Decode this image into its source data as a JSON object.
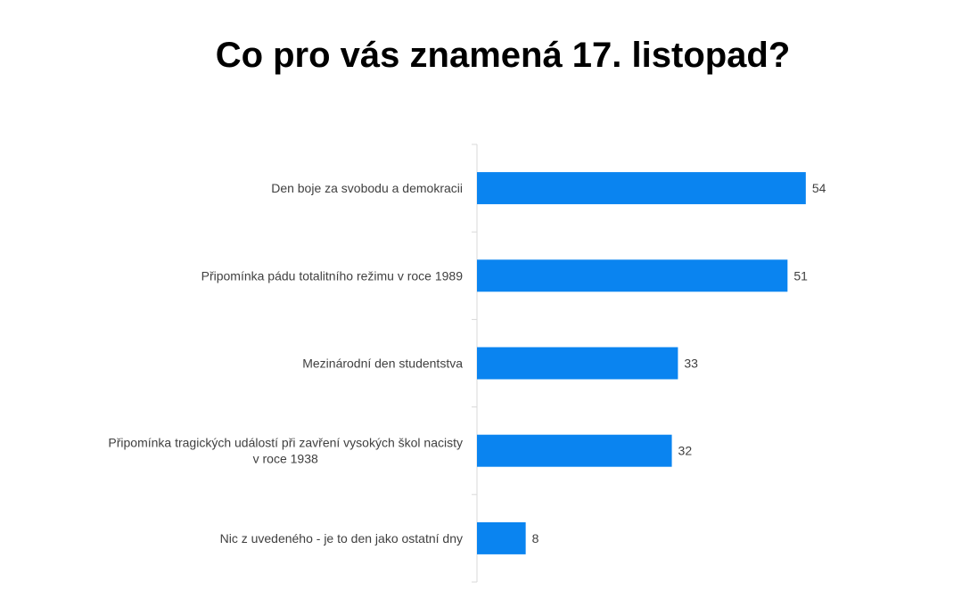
{
  "chart_data": {
    "type": "bar",
    "orientation": "horizontal",
    "title": "Co pro vás znamená 17. listopad?",
    "categories": [
      "Den boje za svobodu a demokracii",
      "Připomínka pádu totalitního režimu v roce 1989",
      "Mezinárodní den studentstva",
      "Připomínka tragických událostí při zavření vysokých škol nacisty v roce 1938",
      "Nic z uvedeného - je to den jako ostatní dny"
    ],
    "category_lines": [
      [
        "Den boje za svobodu a demokracii"
      ],
      [
        "Připomínka pádu totalitního režimu v roce 1989"
      ],
      [
        "Mezinárodní den studentstva"
      ],
      [
        "Připomínka tragických událostí při zavření vysokých škol nacisty",
        "v roce 1938"
      ],
      [
        "Nic z uvedeného - je to den jako ostatní dny"
      ]
    ],
    "values": [
      54,
      51,
      33,
      32,
      8
    ],
    "xlim": [
      0,
      60
    ],
    "data_labels": true,
    "grid": false,
    "legend": "none",
    "bar_color": "#0a84f0"
  }
}
